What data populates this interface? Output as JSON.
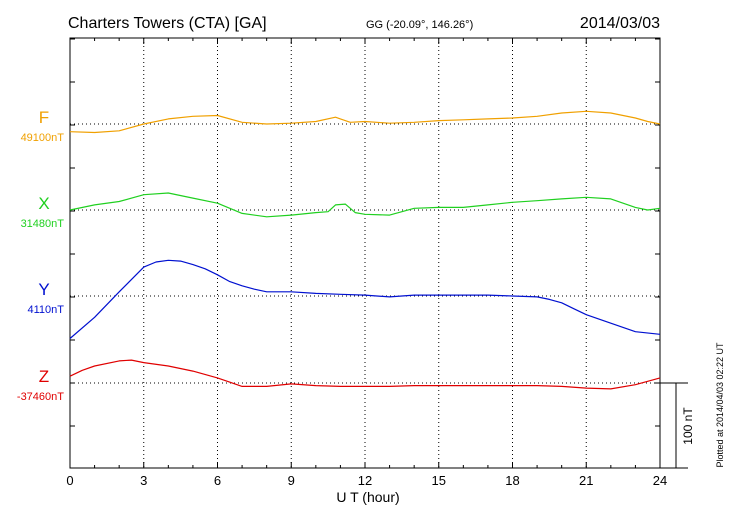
{
  "header": {
    "station": "Charters Towers (CTA)  [GA]",
    "coords": "GG (-20.09°, 146.26°)",
    "date": "2014/03/03"
  },
  "plotted_note": "Plotted at 2014/04/03 02:22 UT",
  "scale_bar_label": "100 nT",
  "chart_data": {
    "type": "line",
    "xlabel": "U T (hour)",
    "xlim": [
      0,
      24
    ],
    "x_ticks": [
      "0",
      "3",
      "6",
      "9",
      "12",
      "15",
      "18",
      "21",
      "24"
    ],
    "grid": true,
    "series": [
      {
        "name": "F",
        "baseline_label": "49100nT",
        "color": "#f0a000",
        "x": [
          0,
          1,
          2,
          3,
          4,
          5,
          6,
          7,
          8,
          9,
          10,
          10.8,
          11,
          11.4,
          12,
          13,
          14,
          15,
          16,
          17,
          18,
          19,
          20,
          21,
          22,
          23,
          23.5,
          24
        ],
        "y": [
          -9,
          -10,
          -8,
          0,
          6,
          9,
          10,
          2,
          0,
          1,
          3,
          8,
          6,
          2,
          3,
          1,
          2,
          4,
          5,
          6,
          7,
          9,
          13,
          15,
          13,
          7,
          3,
          0
        ]
      },
      {
        "name": "X",
        "baseline_label": "31480nT",
        "color": "#20d020",
        "x": [
          0,
          1,
          2,
          3,
          4,
          5,
          6,
          7,
          8,
          9,
          10,
          10.5,
          10.8,
          11.2,
          11.6,
          12,
          13,
          14,
          15,
          16,
          17,
          18,
          19,
          20,
          21,
          22,
          23,
          23.5,
          24
        ],
        "y": [
          0,
          6,
          10,
          18,
          20,
          14,
          8,
          -4,
          -8,
          -6,
          -3,
          -2,
          6,
          7,
          -3,
          -5,
          -6,
          2,
          3,
          3,
          6,
          9,
          11,
          13,
          15,
          13,
          3,
          0,
          2
        ]
      },
      {
        "name": "Y",
        "baseline_label": "4110nT",
        "color": "#0010d0",
        "x": [
          0,
          1,
          2,
          3,
          3.5,
          4,
          4.5,
          5,
          5.5,
          6,
          6.5,
          7,
          7.5,
          8,
          9,
          10,
          11,
          12,
          13,
          14,
          15,
          16,
          17,
          18,
          19,
          19.5,
          20,
          20.5,
          21,
          22,
          23,
          24
        ],
        "y": [
          -50,
          -25,
          5,
          34,
          40,
          42,
          41,
          37,
          32,
          25,
          17,
          12,
          8,
          5,
          5,
          3,
          2,
          1,
          -1,
          1,
          1,
          1,
          1,
          0,
          -1,
          -4,
          -8,
          -15,
          -22,
          -32,
          -42,
          -45
        ]
      },
      {
        "name": "Z",
        "baseline_label": "-37460nT",
        "color": "#e00000",
        "x": [
          0,
          0.5,
          1,
          2,
          2.5,
          3,
          4,
          5,
          6,
          7,
          8,
          9,
          10,
          11,
          12,
          13,
          14,
          15,
          16,
          17,
          18,
          19,
          20,
          21,
          22,
          23,
          23.5,
          24
        ],
        "y": [
          8,
          15,
          20,
          26,
          27,
          24,
          20,
          14,
          6,
          -4,
          -4,
          -1,
          -3,
          -4,
          -4,
          -4,
          -3,
          -3,
          -3,
          -3,
          -3,
          -3,
          -4,
          -6,
          -7,
          -2,
          2,
          6
        ]
      }
    ]
  }
}
